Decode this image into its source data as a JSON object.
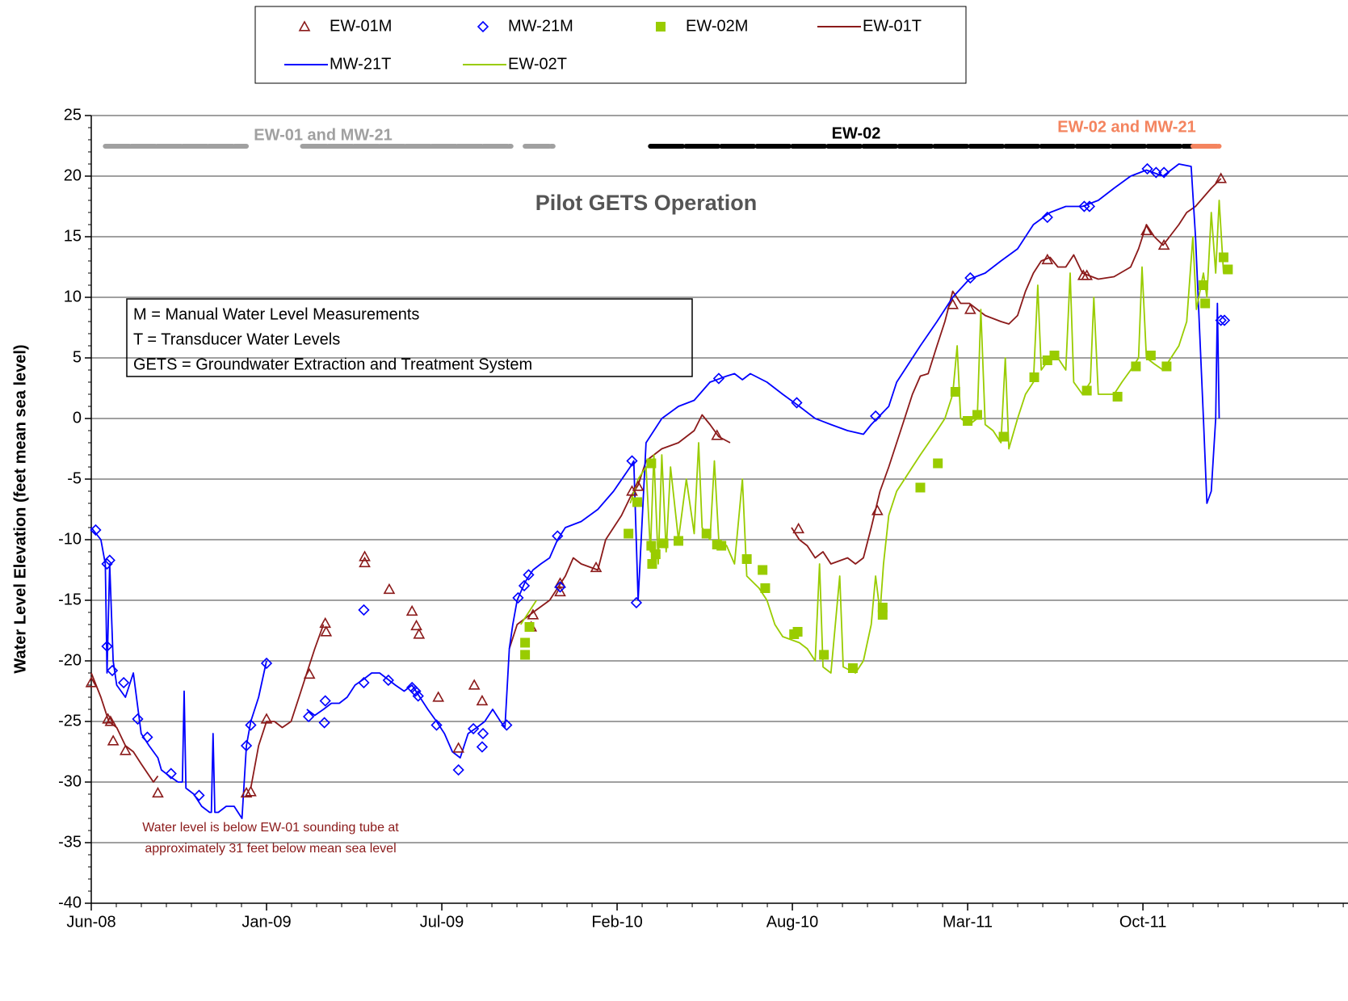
{
  "chart_data": {
    "type": "line",
    "ylabel": "Water Level Elevation (feet mean sea level)",
    "annotation": "Pilot GETS Operation",
    "note_box": [
      "M = Manual Water Level Measurements",
      "T = Transducer Water Levels",
      "GETS = Groundwater Extraction and Treatment System"
    ],
    "callout": [
      "Water level is below EW-01 sounding tube at",
      "approximately 31 feet below mean sea level"
    ],
    "xlim": [
      39619,
      41053
    ],
    "xticks": [
      {
        "value": 39619,
        "label": "Jun-08"
      },
      {
        "value": 39819,
        "label": "Jan-09"
      },
      {
        "value": 40019,
        "label": "Jul-09"
      },
      {
        "value": 40219,
        "label": "Feb-10"
      },
      {
        "value": 40419,
        "label": "Aug-10"
      },
      {
        "value": 40619,
        "label": "Mar-11"
      },
      {
        "value": 40819,
        "label": "Oct-11"
      }
    ],
    "ylim": [
      -40,
      25
    ],
    "yticks": [
      -40,
      -35,
      -30,
      -25,
      -20,
      -15,
      -10,
      -5,
      0,
      5,
      10,
      15,
      20,
      25
    ],
    "grid": true,
    "operation_periods": [
      {
        "name": "EW-01 and MW-21",
        "color": "#a0a0a0",
        "ranges": [
          [
            39635,
            39796
          ],
          [
            39860,
            40098
          ],
          [
            40114,
            40146
          ]
        ]
      },
      {
        "name": "EW-02",
        "color": "#000000",
        "ranges": [
          [
            40257,
            40876
          ]
        ]
      },
      {
        "name": "EW-02 and MW-21",
        "color": "#f4845f",
        "ranges": [
          [
            40876,
            40906
          ]
        ]
      }
    ],
    "series": [
      {
        "name": "EW-01M",
        "color": "#8b1a1a",
        "marker": "triangle",
        "x": [
          39619,
          39638,
          39641,
          39644,
          39658,
          39695,
          39796,
          39801,
          39819,
          39868,
          39886,
          39887,
          39931,
          39931,
          39959,
          39985,
          39990,
          39993,
          40015,
          40038,
          40056,
          40065,
          40121,
          40123,
          40154,
          40154,
          40195,
          40236,
          40243,
          40333,
          40426,
          40516,
          40602,
          40622,
          40710,
          40751,
          40755,
          40823,
          40843,
          40908
        ],
        "values": [
          -21.8,
          -24.8,
          -25,
          -26.6,
          -27.4,
          -30.9,
          -30.9,
          -30.8,
          -24.8,
          -21.1,
          -16.9,
          -17.6,
          -11.4,
          -11.9,
          -14.1,
          -15.9,
          -17.1,
          -17.8,
          -23,
          -27.2,
          -22,
          -23.3,
          -17.2,
          -16.2,
          -14.3,
          -13.6,
          -12.3,
          -6,
          -5.6,
          -1.4,
          -9.1,
          -7.6,
          9.4,
          9,
          13.1,
          11.8,
          11.8,
          15.5,
          14.3,
          19.8
        ]
      },
      {
        "name": "MW-21M",
        "color": "#0000ff",
        "marker": "diamond",
        "x": [
          39624,
          39637,
          39640,
          39637,
          39643,
          39656,
          39672,
          39683,
          39710,
          39742,
          39796,
          39801,
          39819,
          39867,
          39885,
          39886,
          39930,
          39930,
          39958,
          39985,
          39989,
          39992,
          40013,
          40038,
          40055,
          40065,
          40066,
          40093,
          40106,
          40113,
          40118,
          40151,
          40154,
          40236,
          40241,
          40335,
          40424,
          40514,
          40622,
          40710,
          40752,
          40758,
          40824,
          40834,
          40843,
          40908,
          40912
        ],
        "values": [
          -9.2,
          -12,
          -11.7,
          -18.8,
          -20.8,
          -21.8,
          -24.8,
          -26.3,
          -29.3,
          -31.1,
          -27,
          -25.3,
          -20.2,
          -24.6,
          -25.1,
          -23.3,
          -15.8,
          -21.8,
          -21.6,
          -22.2,
          -22.5,
          -22.9,
          -25.3,
          -29,
          -25.6,
          -27.1,
          -26,
          -25.3,
          -14.8,
          -13.8,
          -12.9,
          -9.7,
          -13.9,
          -3.5,
          -15.2,
          3.3,
          1.3,
          0.2,
          11.6,
          16.6,
          17.5,
          17.5,
          20.6,
          20.3,
          20.3,
          8.1,
          8.1
        ]
      },
      {
        "name": "EW-02M",
        "color": "#99cc00",
        "marker": "square",
        "x": [
          40114,
          40114,
          40119,
          40232,
          40242,
          40258,
          40258,
          40259,
          40263,
          40272,
          40289,
          40321,
          40333,
          40338,
          40367,
          40385,
          40388,
          40421,
          40425,
          40455,
          40488,
          40522,
          40522,
          40565,
          40585,
          40605,
          40619,
          40630,
          40660,
          40695,
          40710,
          40718,
          40755,
          40790,
          40811,
          40828,
          40846,
          40888,
          40890,
          40911,
          40916
        ],
        "values": [
          -19.5,
          -18.5,
          -17.2,
          -9.5,
          -6.9,
          -3.7,
          -10.5,
          -12,
          -11.2,
          -10.3,
          -10.1,
          -9.5,
          -10.4,
          -10.5,
          -11.6,
          -12.5,
          -14,
          -17.8,
          -17.6,
          -19.5,
          -20.6,
          -15.6,
          -16.2,
          -5.7,
          -3.7,
          2.2,
          -0.2,
          0.3,
          -1.5,
          3.4,
          4.8,
          5.2,
          2.3,
          1.8,
          4.3,
          5.2,
          4.3,
          11,
          9.5,
          13.3,
          12.3
        ]
      },
      {
        "name": "EW-01T",
        "color": "#8b1a1a",
        "marker": "line",
        "x": [
          39619,
          39630,
          39639,
          39648,
          39658,
          39667,
          39676,
          39690,
          39695,
          null,
          39801,
          39810,
          39819,
          39828,
          39837,
          39847,
          39856,
          39865,
          39874,
          39884,
          null,
          40096,
          40105,
          40123,
          40142,
          40160,
          40169,
          40178,
          40197,
          40206,
          40215,
          40224,
          40234,
          40243,
          40252,
          40270,
          40289,
          40307,
          40316,
          40325,
          40335,
          40348,
          null,
          40418,
          40427,
          40436,
          40445,
          40454,
          40463,
          40482,
          40491,
          40500,
          40509,
          40519,
          40529,
          40538,
          40547,
          40556,
          40565,
          40574,
          40584,
          40593,
          40602,
          40611,
          40621,
          40639,
          40657,
          40666,
          40676,
          40685,
          40694,
          40703,
          40713,
          40722,
          40731,
          40740,
          40750,
          40768,
          40786,
          40805,
          40814,
          40823,
          40832,
          40842,
          40860,
          40869,
          40879,
          40897,
          40908
        ],
        "values": [
          -21,
          -23,
          -25,
          -25.5,
          -27,
          -27.5,
          -28.5,
          -30,
          -29.5,
          null,
          -30.5,
          -27,
          -25,
          -25,
          -25.5,
          -25,
          -23,
          -21,
          -19,
          -17,
          null,
          -19,
          -17,
          -16,
          -15,
          -13,
          -11.5,
          -12,
          -12.5,
          -10,
          -9,
          -8,
          -6.5,
          -5.5,
          -3.5,
          -2.5,
          -2,
          -1,
          0.3,
          -0.5,
          -1.5,
          -2,
          null,
          -9,
          -10,
          -10.5,
          -11.5,
          -11,
          -12,
          -11.5,
          -12,
          -11.5,
          -9,
          -6,
          -4,
          -2,
          0,
          2,
          3.5,
          3.7,
          6,
          8,
          10.5,
          9.5,
          9.5,
          8.5,
          8,
          7.8,
          8.5,
          10.5,
          12,
          13,
          13.3,
          12.5,
          12.5,
          13.5,
          12,
          11.5,
          11.7,
          12.5,
          14,
          16,
          15,
          14.3,
          16,
          17,
          17.5,
          19,
          19.8
        ]
      },
      {
        "name": "MW-21T",
        "color": "#0000ff",
        "marker": "line",
        "x": [
          39619,
          39630,
          39635,
          39637,
          39640,
          39644,
          39648,
          39658,
          39667,
          39676,
          39685,
          39695,
          39699,
          39708,
          39718,
          39723,
          39725,
          39727,
          39736,
          39745,
          39754,
          39756,
          39758,
          39760,
          39764,
          39773,
          39782,
          39791,
          39796,
          39801,
          39810,
          39819,
          null,
          39865,
          39874,
          39884,
          39893,
          39902,
          39911,
          39920,
          39930,
          39939,
          39948,
          39957,
          39966,
          39976,
          39985,
          39994,
          40003,
          40013,
          40022,
          40031,
          40040,
          40049,
          40059,
          40068,
          40077,
          40086,
          40091,
          40096,
          40100,
          40105,
          40114,
          40123,
          40132,
          40142,
          40151,
          40160,
          40178,
          40197,
          40215,
          40234,
          40238,
          40243,
          40252,
          40270,
          40289,
          40307,
          40325,
          40344,
          40353,
          40362,
          40371,
          40390,
          40408,
          40427,
          40445,
          40463,
          40482,
          40500,
          40509,
          40529,
          40538,
          40547,
          40565,
          40584,
          40602,
          40621,
          40639,
          40657,
          40676,
          40694,
          40713,
          40731,
          40750,
          40768,
          40786,
          40805,
          40823,
          40842,
          40860,
          40874,
          40879,
          40888,
          40892,
          40897,
          40902,
          40904,
          40906
        ],
        "values": [
          -9,
          -10,
          -12,
          -21,
          -12,
          -20,
          -22,
          -23,
          -21,
          -26,
          -27,
          -28,
          -29,
          -29.5,
          -30,
          -30,
          -22.5,
          -30.5,
          -31,
          -32,
          -32.5,
          -32.5,
          -26,
          -32.5,
          -32.5,
          -32,
          -32,
          -33,
          -27,
          -25,
          -23,
          -20,
          null,
          -24,
          -24.5,
          -24,
          -23.5,
          -23.5,
          -23,
          -22,
          -21.5,
          -21,
          -21,
          -21.5,
          -22,
          -22.5,
          -22,
          -23,
          -24,
          -25,
          -26,
          -27.5,
          -28,
          -26,
          -25.5,
          -25,
          -24,
          -25,
          -25.5,
          -19,
          -17,
          -15,
          -13.5,
          -12.5,
          -12,
          -11.5,
          -10,
          -9,
          -8.5,
          -7.5,
          -6,
          -4,
          -3.5,
          -15,
          -2,
          0,
          1,
          1.5,
          3,
          3.5,
          3.7,
          3.2,
          3.7,
          3,
          2,
          1,
          0,
          -0.5,
          -1,
          -1.3,
          -0.5,
          1,
          3,
          4,
          6,
          8,
          10,
          11.5,
          12,
          13,
          14,
          16,
          17,
          17.5,
          17.5,
          18,
          19,
          20,
          20.5,
          20,
          21,
          20.8,
          15,
          0,
          -7,
          -6,
          0,
          9.5,
          0
        ]
      },
      {
        "name": "EW-02T",
        "color": "#99cc00",
        "marker": "line",
        "x": [
          40109,
          40118,
          40127,
          null,
          40234,
          40243,
          40252,
          40257,
          40261,
          40266,
          40270,
          40275,
          40280,
          40289,
          40298,
          40307,
          40312,
          40316,
          40325,
          40330,
          40335,
          40344,
          40353,
          40362,
          40367,
          40381,
          40390,
          40399,
          40408,
          40427,
          40436,
          40445,
          40450,
          40454,
          40463,
          40473,
          40477,
          40491,
          40500,
          40509,
          40514,
          40519,
          40523,
          40529,
          40538,
          40547,
          40556,
          40565,
          40584,
          40593,
          40602,
          40607,
          40611,
          40621,
          40630,
          40634,
          40639,
          40648,
          40657,
          40662,
          40666,
          40676,
          40685,
          40694,
          40699,
          40703,
          40713,
          40722,
          40731,
          40736,
          40740,
          40750,
          40759,
          40763,
          40768,
          40777,
          40786,
          40795,
          40805,
          40814,
          40818,
          40823,
          40832,
          40842,
          40851,
          40860,
          40869,
          40876,
          40880,
          40888,
          40892,
          40897,
          40902,
          40906,
          40911,
          40915
        ],
        "values": [
          -17,
          -16,
          -15,
          null,
          -7,
          -5,
          -4,
          -11,
          -3,
          -12,
          -3,
          -11,
          -4,
          -10,
          -5,
          -9.5,
          -2,
          -9,
          -10,
          -3.5,
          -10,
          -10.5,
          -12,
          -5,
          -13,
          -14,
          -15,
          -17,
          -18,
          -18.5,
          -19,
          -20,
          -12,
          -20.5,
          -21,
          -13,
          -20.5,
          -21,
          -20,
          -17,
          -13,
          -16,
          -12,
          -8,
          -6,
          -5,
          -4,
          -3,
          -1,
          0,
          2,
          6,
          0,
          -0.5,
          0,
          9,
          -0.5,
          -1,
          -2,
          5,
          -2.5,
          0,
          2,
          3,
          11,
          4,
          5,
          5,
          4,
          12,
          3,
          2,
          3,
          10,
          2,
          2,
          2,
          3,
          4,
          5,
          12.5,
          5,
          4.5,
          4,
          5,
          6,
          8,
          15,
          9,
          12,
          10,
          17,
          12,
          18,
          12,
          12
        ]
      }
    ]
  }
}
